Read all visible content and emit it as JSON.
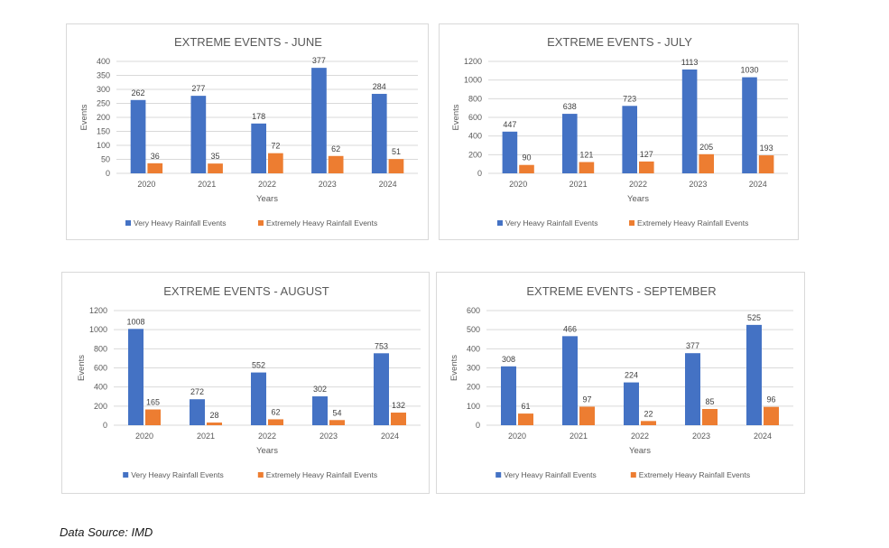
{
  "colors": {
    "series_primary": "#4472c4",
    "series_secondary": "#ed7d31",
    "grid": "#d9d9d9",
    "text": "#595959"
  },
  "chart_data": [
    {
      "type": "bar",
      "title": "EXTREME EVENTS - JUNE",
      "xlabel": "Years",
      "ylabel": "Events",
      "categories": [
        "2020",
        "2021",
        "2022",
        "2023",
        "2024"
      ],
      "yticks": [
        "0",
        "50",
        "100",
        "150",
        "200",
        "250",
        "300",
        "350",
        "400"
      ],
      "ylim": [
        0,
        400
      ],
      "grid": true,
      "legend_position": "bottom",
      "series": [
        {
          "name": "Very Heavy Rainfall Events",
          "values": [
            262,
            277,
            178,
            377,
            284
          ]
        },
        {
          "name": "Extremely Heavy Rainfall Events",
          "values": [
            36,
            35,
            72,
            62,
            51
          ]
        }
      ]
    },
    {
      "type": "bar",
      "title": "EXTREME EVENTS - JULY",
      "xlabel": "Years",
      "ylabel": "Events",
      "categories": [
        "2020",
        "2021",
        "2022",
        "2023",
        "2024"
      ],
      "yticks": [
        "0",
        "200",
        "400",
        "600",
        "800",
        "1000",
        "1200"
      ],
      "ylim": [
        0,
        1200
      ],
      "grid": true,
      "legend_position": "bottom",
      "series": [
        {
          "name": "Very Heavy Rainfall Events",
          "values": [
            447,
            638,
            723,
            1113,
            1030
          ]
        },
        {
          "name": "Extremely Heavy Rainfall Events",
          "values": [
            90,
            121,
            127,
            205,
            193
          ]
        }
      ]
    },
    {
      "type": "bar",
      "title": "EXTREME EVENTS - AUGUST",
      "xlabel": "Years",
      "ylabel": "Events",
      "categories": [
        "2020",
        "2021",
        "2022",
        "2023",
        "2024"
      ],
      "yticks": [
        "0",
        "200",
        "400",
        "600",
        "800",
        "1000",
        "1200"
      ],
      "ylim": [
        0,
        1200
      ],
      "grid": true,
      "legend_position": "bottom",
      "series": [
        {
          "name": "Very Heavy Rainfall Events",
          "values": [
            1008,
            272,
            552,
            302,
            753
          ]
        },
        {
          "name": "Extremely Heavy Rainfall Events",
          "values": [
            165,
            28,
            62,
            54,
            132
          ]
        }
      ]
    },
    {
      "type": "bar",
      "title": "EXTREME EVENTS - SEPTEMBER",
      "xlabel": "Years",
      "ylabel": "Events",
      "categories": [
        "2020",
        "2021",
        "2022",
        "2023",
        "2024"
      ],
      "yticks": [
        "0",
        "100",
        "200",
        "300",
        "400",
        "500",
        "600"
      ],
      "ylim": [
        0,
        600
      ],
      "grid": true,
      "legend_position": "bottom",
      "series": [
        {
          "name": "Very Heavy Rainfall Events",
          "values": [
            308,
            466,
            224,
            377,
            525
          ]
        },
        {
          "name": "Extremely Heavy Rainfall Events",
          "values": [
            61,
            97,
            22,
            85,
            96
          ]
        }
      ]
    }
  ],
  "footer": {
    "source_text": "Data Source: IMD"
  }
}
